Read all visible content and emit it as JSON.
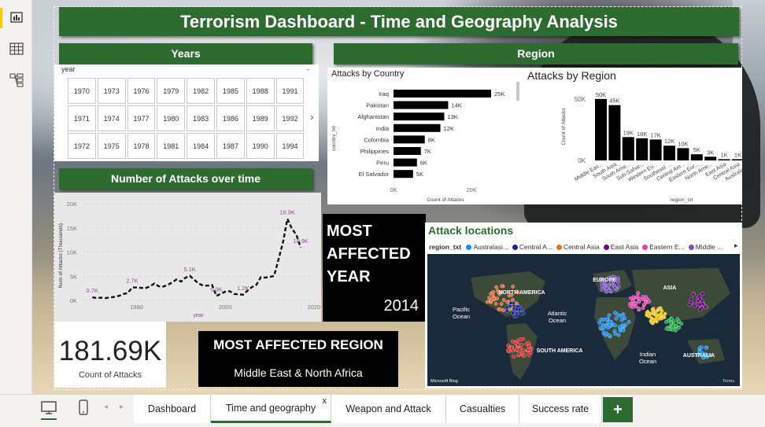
{
  "title": "Terrorism Dashboard - Time and Geography Analysis",
  "headers": {
    "years": "Years",
    "region": "Region",
    "attacks_over_time": "Number of Attacks over time"
  },
  "years_slicer": {
    "field": "year",
    "values": [
      "1970",
      "1973",
      "1976",
      "1979",
      "1982",
      "1985",
      "1988",
      "1991",
      "1971",
      "1974",
      "1977",
      "1980",
      "1983",
      "1986",
      "1989",
      "1992",
      "1972",
      "1975",
      "1978",
      "1981",
      "1984",
      "1987",
      "1990",
      "1994"
    ]
  },
  "kpi_count": {
    "value": "181.69K",
    "label": "Count of Attacks"
  },
  "most_affected_year": {
    "title": "MOST AFFECTED YEAR",
    "value": "2014"
  },
  "most_affected_region": {
    "title": "MOST AFFECTED REGION",
    "value": "Middle East & North Africa"
  },
  "map": {
    "title": "Attack locations",
    "legend_field": "region_txt",
    "legend_items": [
      {
        "label": "Australasi...",
        "color": "#118dff"
      },
      {
        "label": "Central A...",
        "color": "#12239e"
      },
      {
        "label": "Central Asia",
        "color": "#e66c37"
      },
      {
        "label": "East Asia",
        "color": "#6b007b"
      },
      {
        "label": "Eastern E...",
        "color": "#e044a7"
      },
      {
        "label": "Middle ...",
        "color": "#744ec2"
      }
    ],
    "labels": [
      "NORTH AMERICA",
      "EUROPE",
      "ASIA",
      "Pacific Ocean",
      "Atlantic Ocean",
      "SOUTH AMERICA",
      "Indian Ocean",
      "AUSTRALIA"
    ],
    "attribution": "Microsoft Bing",
    "terms": "Terms"
  },
  "chart_data": [
    {
      "type": "bar",
      "orientation": "horizontal",
      "title": "Attacks by Country",
      "xlabel": "Count of Attacks",
      "ylabel": "country_txt",
      "categories": [
        "Iraq",
        "Pakistan",
        "Afghanistan",
        "India",
        "Colombia",
        "Philippines",
        "Peru",
        "El Salvador"
      ],
      "values": [
        25000,
        14000,
        13000,
        12000,
        8000,
        7000,
        6000,
        5000
      ],
      "data_labels": [
        "25K",
        "14K",
        "13K",
        "12K",
        "8K",
        "7K",
        "6K",
        "5K"
      ],
      "xticks": [
        "0K",
        "20K"
      ],
      "xlim": [
        0,
        30000
      ]
    },
    {
      "type": "bar",
      "title": "Attacks by Region",
      "xlabel": "region_txt",
      "ylabel": "Count of Attacks",
      "categories": [
        "Middle Eas...",
        "South Asia",
        "South Ame...",
        "Sub-Sahar...",
        "Western Eu...",
        "Southeast ...",
        "Central Am...",
        "Eastern Eur...",
        "North Ame...",
        "East Asia",
        "Central Asia",
        "Australasia..."
      ],
      "values": [
        50000,
        45000,
        19000,
        18000,
        17000,
        12000,
        10000,
        5000,
        3000,
        1000,
        1000,
        0
      ],
      "data_labels": [
        "50K",
        "45K",
        "19K",
        "18K",
        "17K",
        "12K",
        "10K",
        "5K",
        "3K",
        "1K",
        "1K",
        "0K"
      ],
      "yticks": [
        "0K",
        "50K"
      ],
      "ylim": [
        0,
        55000
      ]
    },
    {
      "type": "line",
      "title": "",
      "xlabel": "year",
      "ylabel": "Num of Attacks (Thousands)",
      "xlim": [
        1968,
        2020
      ],
      "ylim": [
        0,
        20000
      ],
      "xticks": [
        "1980",
        "2000",
        "2020"
      ],
      "yticks": [
        "0K",
        "5K",
        "10K",
        "15K",
        "20K"
      ],
      "x": [
        1970,
        1971,
        1972,
        1973,
        1974,
        1975,
        1976,
        1977,
        1978,
        1979,
        1980,
        1981,
        1982,
        1983,
        1984,
        1985,
        1986,
        1987,
        1988,
        1989,
        1990,
        1991,
        1992,
        1994,
        1995,
        1996,
        1997,
        1998,
        1999,
        2000,
        2001,
        2002,
        2003,
        2004,
        2005,
        2006,
        2007,
        2008,
        2009,
        2010,
        2011,
        2012,
        2013,
        2014,
        2015,
        2016,
        2017
      ],
      "values": [
        650,
        470,
        570,
        470,
        580,
        740,
        920,
        1320,
        1530,
        2660,
        2660,
        2590,
        2540,
        2870,
        3500,
        2910,
        2860,
        3180,
        3720,
        4320,
        3890,
        4680,
        5070,
        3460,
        3080,
        3060,
        3200,
        930,
        1400,
        1810,
        1900,
        1330,
        1260,
        1170,
        2020,
        2760,
        3240,
        4800,
        4720,
        4830,
        5080,
        8500,
        12040,
        16860,
        14850,
        13590,
        10900
      ],
      "data_labels": [
        {
          "x": 1970,
          "text": "0.7K"
        },
        {
          "x": 1979,
          "text": "2.7K"
        },
        {
          "x": 1992,
          "text": "5.1K"
        },
        {
          "x": 1998,
          "text": "0.9K"
        },
        {
          "x": 2004,
          "text": "1.2K"
        },
        {
          "x": 2014,
          "text": "16.9K"
        },
        {
          "x": 2017,
          "text": "10.9K"
        }
      ]
    }
  ],
  "tabs": [
    {
      "label": "Dashboard"
    },
    {
      "label": "Time and geography",
      "close": "x"
    },
    {
      "label": "Weapon and Attack"
    },
    {
      "label": "Casualties"
    },
    {
      "label": "Success rate"
    }
  ],
  "add_tab": "+",
  "nav": {
    "prev": "◂",
    "next": "▸"
  }
}
